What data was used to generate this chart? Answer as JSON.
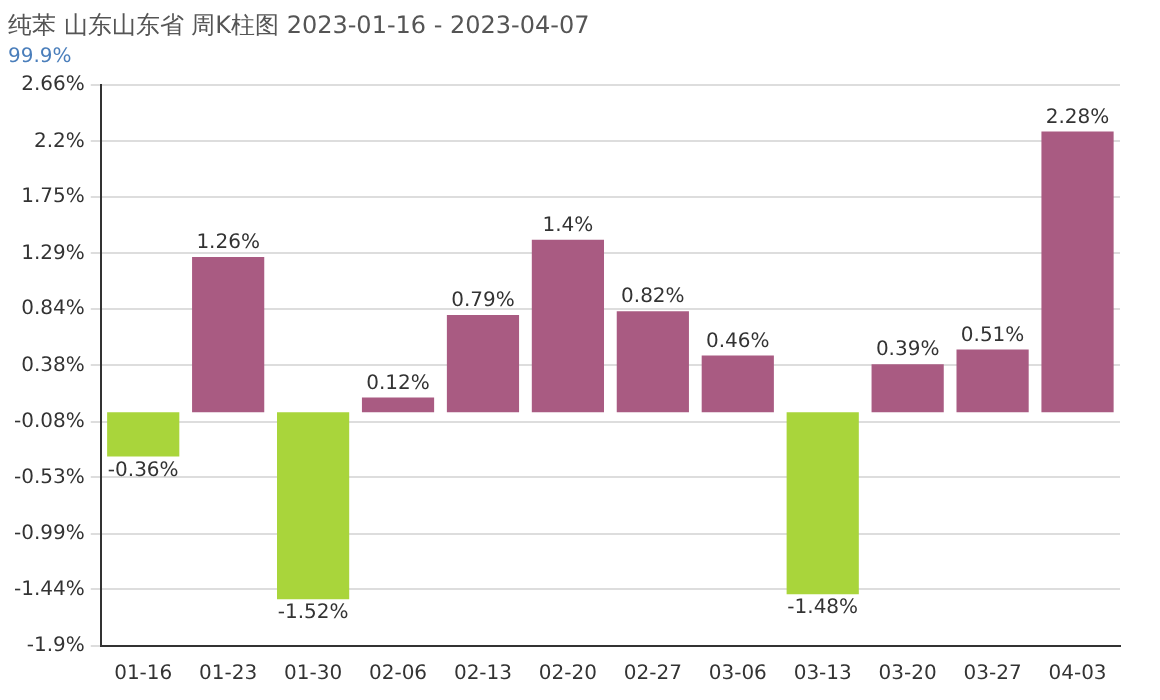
{
  "chart_data": {
    "type": "bar",
    "title": "纯苯 山东山东省 周K柱图 2023-01-16 - 2023-04-07",
    "subtitle": "99.9%",
    "categories": [
      "01-16",
      "01-23",
      "01-30",
      "02-06",
      "02-13",
      "02-20",
      "02-27",
      "03-06",
      "03-13",
      "03-20",
      "03-27",
      "04-03"
    ],
    "values": [
      -0.36,
      1.26,
      -1.52,
      0.12,
      0.79,
      1.4,
      0.82,
      0.46,
      -1.48,
      0.39,
      0.51,
      2.28
    ],
    "colors": [
      "#a9d53b",
      "#a95b82",
      "#a9d53b",
      "#a95b82",
      "#a95b82",
      "#a95b82",
      "#a95b82",
      "#a95b82",
      "#a9d53b",
      "#a95b82",
      "#a95b82",
      "#a95b82"
    ],
    "value_labels": [
      "-0.36%",
      "1.26%",
      "-1.52%",
      "0.12%",
      "0.79%",
      "1.4%",
      "0.82%",
      "0.46%",
      "-1.48%",
      "0.39%",
      "0.51%",
      "2.28%"
    ],
    "ylim": [
      -1.9,
      2.66
    ],
    "yticks": [
      {
        "value": -1.9,
        "label": "-1.9%"
      },
      {
        "value": -1.44,
        "label": "-1.44%"
      },
      {
        "value": -0.99,
        "label": "-0.99%"
      },
      {
        "value": -0.53,
        "label": "-0.53%"
      },
      {
        "value": -0.08,
        "label": "-0.08%"
      },
      {
        "value": 0.38,
        "label": "0.38%"
      },
      {
        "value": 0.84,
        "label": "0.84%"
      },
      {
        "value": 1.29,
        "label": "1.29%"
      },
      {
        "value": 1.75,
        "label": "1.75%"
      },
      {
        "value": 2.2,
        "label": "2.2%"
      },
      {
        "value": 2.66,
        "label": "2.66%"
      }
    ],
    "grid": "y",
    "legend": false
  }
}
